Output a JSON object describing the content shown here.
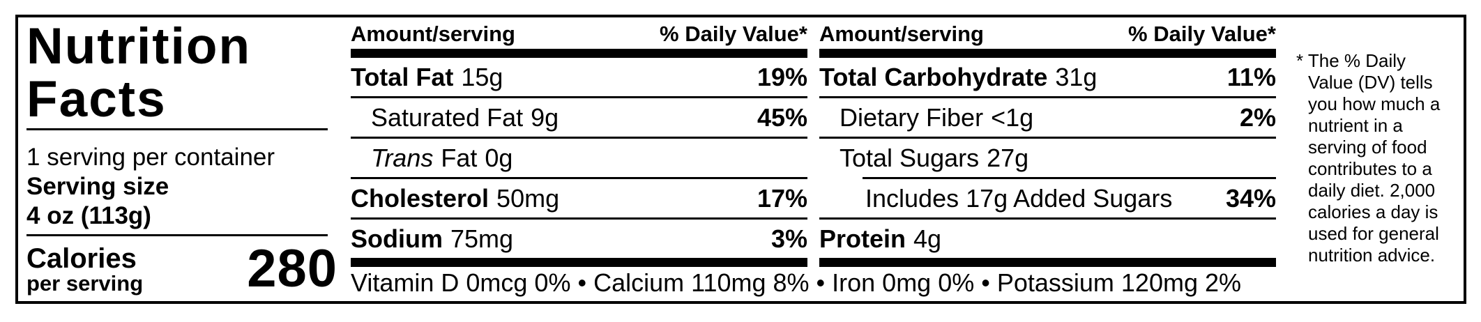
{
  "nutrition_label": {
    "title_lines": [
      "Nutrition",
      "Facts"
    ],
    "servings_per_container": "1 serving per container",
    "serving_size_label": "Serving size",
    "serving_size_value": "4 oz (113g)",
    "calories": {
      "label": "Calories",
      "sublabel": "per serving",
      "value": "280"
    },
    "table_header": {
      "amount_label": "Amount/serving",
      "dv_label": "% Daily Value*"
    },
    "columns": [
      {
        "rows": [
          {
            "name_italic": "",
            "name_bold": "Total Fat",
            "name": "",
            "amount": "15g",
            "dv": "19%"
          },
          {
            "name_italic": "",
            "name_bold": "",
            "name": "Saturated Fat",
            "amount": "9g",
            "dv": "45%"
          },
          {
            "name_italic": "Trans",
            "name_bold": "",
            "name": "Fat",
            "amount": "0g",
            "dv": ""
          },
          {
            "name_italic": "",
            "name_bold": "Cholesterol",
            "name": "",
            "amount": "50mg",
            "dv": "17%"
          },
          {
            "name_italic": "",
            "name_bold": "Sodium",
            "name": "",
            "amount": "75mg",
            "dv": "3%"
          }
        ]
      },
      {
        "rows": [
          {
            "name_italic": "",
            "name_bold": "Total Carbohydrate",
            "name": "",
            "amount": "31g",
            "dv": "11%"
          },
          {
            "name_italic": "",
            "name_bold": "",
            "name": "Dietary Fiber",
            "amount": "<1g",
            "dv": "2%"
          },
          {
            "name_italic": "",
            "name_bold": "",
            "name": "Total Sugars",
            "amount": "27g",
            "dv": ""
          },
          {
            "name_italic": "",
            "name_bold": "",
            "name": "Includes 17g Added Sugars",
            "amount": "",
            "dv": "34%"
          },
          {
            "name_italic": "",
            "name_bold": "Protein",
            "name": "",
            "amount": "4g",
            "dv": ""
          }
        ]
      }
    ],
    "micronutrients_line": "Vitamin D 0mcg 0% • Calcium 110mg 8% • Iron 0mg 0% • Potassium 120mg 2%",
    "footnote": "* The % Daily Value (DV) tells you how much a nutrient in a serving of food contributes to a daily diet. 2,000 calories a day is used for general nutrition advice."
  },
  "colors": {
    "ink": "#000000",
    "paper": "#ffffff"
  }
}
